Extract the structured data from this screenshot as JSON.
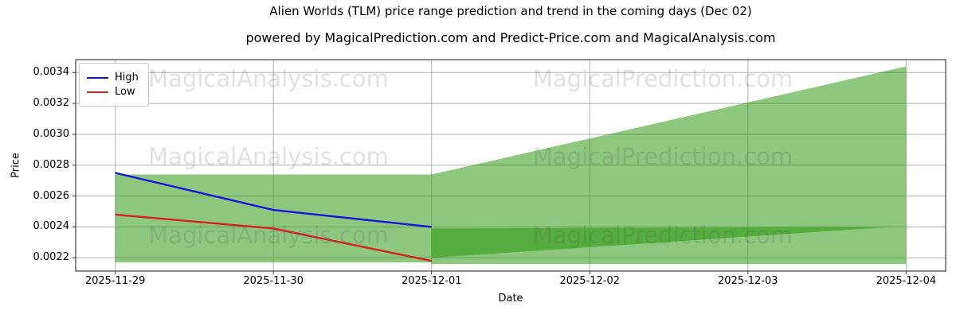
{
  "header": {
    "title": "Alien Worlds (TLM) price range prediction and trend in the coming days (Dec 02)",
    "subtitle": "powered by MagicalPrediction.com and Predict-Price.com and MagicalAnalysis.com"
  },
  "watermarks": {
    "left_text": "MagicalAnalysis.com",
    "right_text": "MagicalPrediction.com"
  },
  "colors": {
    "high_line": "#1414d8",
    "low_line": "#d42121",
    "band_green": "#1e9100",
    "grid": "#b0b0b0",
    "spine": "#1a1a1a",
    "tick": "#333333"
  },
  "chart_data": {
    "type": "line",
    "title": "Alien Worlds (TLM) price range prediction and trend in the coming days (Dec 02)",
    "xlabel": "Date",
    "ylabel": "Price",
    "x_categories": [
      "2025-11-29",
      "2025-11-30",
      "2025-12-01",
      "2025-12-02",
      "2025-12-03",
      "2025-12-04"
    ],
    "yticks": [
      0.0022,
      0.0024,
      0.0026,
      0.0028,
      0.003,
      0.0032,
      0.0034
    ],
    "xlim": [
      -0.25,
      5.25
    ],
    "ylim": [
      0.002114,
      0.003484
    ],
    "grid": true,
    "legend_position": "upper-left",
    "series": [
      {
        "name": "High",
        "color": "#1414d8",
        "x": [
          0,
          1,
          2
        ],
        "values": [
          0.00275,
          0.00251,
          0.0024
        ]
      },
      {
        "name": "Low",
        "color": "#d42121",
        "x": [
          0,
          1,
          2
        ],
        "values": [
          0.00248,
          0.00239,
          0.00218
        ]
      }
    ],
    "bands": [
      {
        "name": "historical-range",
        "color": "#1e9100",
        "opacity": 0.5,
        "points": [
          [
            0,
            0.00217
          ],
          [
            0,
            0.00274
          ],
          [
            2,
            0.00274
          ],
          [
            2,
            0.00217
          ]
        ]
      },
      {
        "name": "forecast-range",
        "color": "#1e9100",
        "opacity": 0.5,
        "points": [
          [
            2,
            0.00216
          ],
          [
            2,
            0.00274
          ],
          [
            5,
            0.00344
          ],
          [
            5,
            0.00216
          ]
        ]
      },
      {
        "name": "forecast-trend",
        "color": "#1e9100",
        "opacity": 0.5,
        "points": [
          [
            2,
            0.0022
          ],
          [
            2,
            0.00239
          ],
          [
            4.9,
            0.0024
          ]
        ]
      }
    ]
  }
}
